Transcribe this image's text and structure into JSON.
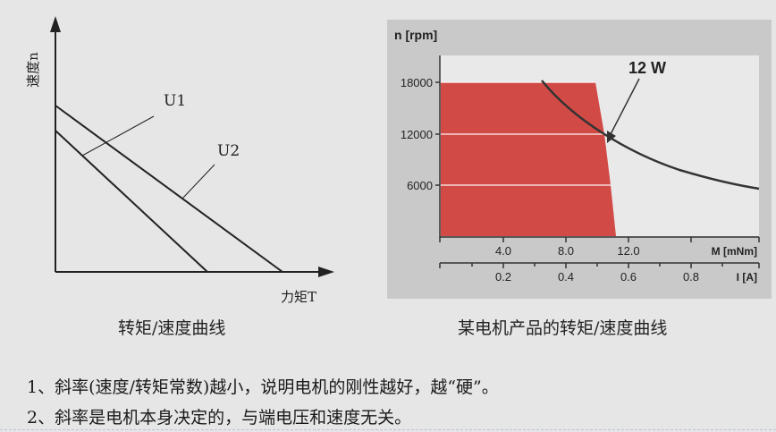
{
  "left_chart": {
    "y_axis_label": "速度n",
    "x_axis_label": "力矩T",
    "series_labels": [
      "U1",
      "U2"
    ],
    "caption": "转矩/速度曲线"
  },
  "right_chart": {
    "y_axis_title": "n [rpm]",
    "y_ticks": [
      "18000",
      "12000",
      "6000"
    ],
    "x_ticks_torque": [
      "4.0",
      "8.0",
      "12.0"
    ],
    "x_axis_torque_label": "M [mNm]",
    "x_ticks_current": [
      "0.2",
      "0.4",
      "0.6",
      "0.8"
    ],
    "x_axis_current_label": "I [A]",
    "power_label": "12 W",
    "caption": "某电机产品的转矩/速度曲线"
  },
  "notes": [
    "1、斜率(速度/转矩常数)越小，说明电机的刚性越好，越“硬”。",
    "2、斜率是电机本身决定的，与端电压和速度无关。"
  ],
  "colors": {
    "region_fill": "#d24a46",
    "panel_background": "#c8c8c8",
    "plot_background": "#e8e8e8",
    "line": "#333333"
  }
}
